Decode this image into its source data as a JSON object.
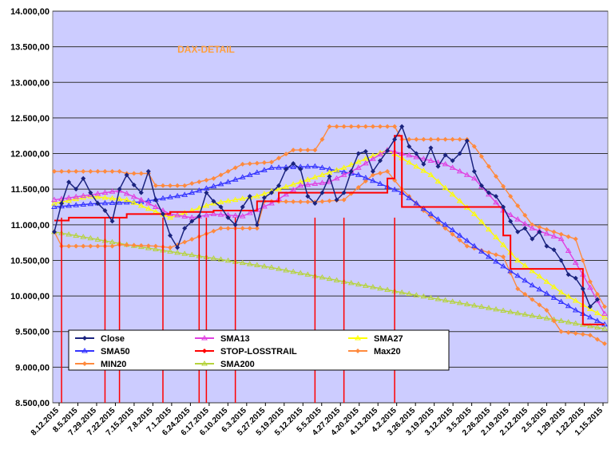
{
  "chart_data": {
    "type": "line",
    "title": "DAX-DETAIL",
    "xlabel": "",
    "ylabel": "",
    "ylim": [
      8500,
      14000
    ],
    "y_ticks": [
      "8.500,00",
      "9.000,00",
      "9.500,00",
      "10.000,00",
      "10.500,00",
      "11.000,00",
      "11.500,00",
      "12.000,00",
      "12.500,00",
      "13.000,00",
      "13.500,00",
      "14.000,00"
    ],
    "y_tick_values": [
      8500,
      9000,
      9500,
      10000,
      10500,
      11000,
      11500,
      12000,
      12500,
      13000,
      13500,
      14000
    ],
    "x_ticks": [
      "8.12.2015",
      "8.5.2015",
      "7.29.2015",
      "7.22.2015",
      "7.15.2015",
      "7.8.2015",
      "7.1.2015",
      "6.24.2015",
      "6.17.2015",
      "6.10.2015",
      "6.3.2015",
      "5.27.2015",
      "5.19.2015",
      "5.12.2015",
      "5.5.2015",
      "4.27.2015",
      "4.20.2015",
      "4.13.2015",
      "4.2.2015",
      "3.26.2015",
      "3.19.2015",
      "3.12.2015",
      "3.5.2015",
      "2.26.2015",
      "2.19.2015",
      "2.12.2015",
      "2.5.2015",
      "1.29.2015",
      "1.22.2015",
      "1.15.2015"
    ],
    "grid": true,
    "legend_position": "bottom-left",
    "x_order": "newest-left (index 0 = 8.12.2015)",
    "series": [
      {
        "name": "Close",
        "color": "#1a237e",
        "marker": "diamond",
        "values": [
          [
            0,
            10900
          ],
          [
            1,
            11300
          ],
          [
            2,
            11600
          ],
          [
            3,
            11500
          ],
          [
            4,
            11650
          ],
          [
            5,
            11450
          ],
          [
            6,
            11300
          ],
          [
            7,
            11200
          ],
          [
            8,
            11050
          ],
          [
            9,
            11500
          ],
          [
            10,
            11700
          ],
          [
            11,
            11560
          ],
          [
            12,
            11450
          ],
          [
            13,
            11750
          ],
          [
            14,
            11350
          ],
          [
            15,
            11150
          ],
          [
            16,
            10850
          ],
          [
            17,
            10680
          ],
          [
            18,
            10950
          ],
          [
            19,
            11050
          ],
          [
            20,
            11120
          ],
          [
            21,
            11450
          ],
          [
            22,
            11330
          ],
          [
            23,
            11250
          ],
          [
            24,
            11100
          ],
          [
            25,
            11000
          ],
          [
            26,
            11250
          ],
          [
            27,
            11400
          ],
          [
            28,
            11000
          ],
          [
            29,
            11380
          ],
          [
            30,
            11450
          ],
          [
            31,
            11550
          ],
          [
            32,
            11780
          ],
          [
            33,
            11860
          ],
          [
            34,
            11780
          ],
          [
            35,
            11400
          ],
          [
            36,
            11300
          ],
          [
            37,
            11450
          ],
          [
            38,
            11680
          ],
          [
            39,
            11350
          ],
          [
            40,
            11450
          ],
          [
            41,
            11750
          ],
          [
            42,
            12000
          ],
          [
            43,
            12030
          ],
          [
            44,
            11750
          ],
          [
            45,
            11900
          ],
          [
            46,
            12040
          ],
          [
            47,
            12200
          ],
          [
            48,
            12380
          ],
          [
            49,
            12100
          ],
          [
            50,
            12000
          ],
          [
            51,
            11850
          ],
          [
            52,
            12080
          ],
          [
            53,
            11820
          ],
          [
            54,
            11980
          ],
          [
            55,
            11900
          ],
          [
            56,
            12000
          ],
          [
            57,
            12180
          ],
          [
            58,
            11750
          ],
          [
            59,
            11550
          ],
          [
            60,
            11450
          ],
          [
            61,
            11400
          ],
          [
            62,
            11250
          ],
          [
            63,
            11050
          ],
          [
            64,
            10900
          ],
          [
            65,
            10950
          ],
          [
            66,
            10800
          ],
          [
            67,
            10900
          ],
          [
            68,
            10700
          ],
          [
            69,
            10650
          ],
          [
            70,
            10500
          ],
          [
            71,
            10300
          ],
          [
            72,
            10250
          ],
          [
            73,
            10100
          ],
          [
            74,
            9850
          ],
          [
            75,
            9950
          ]
        ]
      },
      {
        "name": "SMA13",
        "color": "#e040e0",
        "marker": "triangle",
        "values": [
          [
            0,
            11350
          ],
          [
            5,
            11420
          ],
          [
            9,
            11480
          ],
          [
            12,
            11350
          ],
          [
            16,
            11150
          ],
          [
            19,
            11100
          ],
          [
            22,
            11150
          ],
          [
            26,
            11120
          ],
          [
            30,
            11300
          ],
          [
            34,
            11550
          ],
          [
            38,
            11600
          ],
          [
            42,
            11800
          ],
          [
            46,
            12050
          ],
          [
            50,
            11950
          ],
          [
            54,
            11850
          ],
          [
            58,
            11650
          ],
          [
            62,
            11200
          ],
          [
            66,
            10950
          ],
          [
            70,
            10800
          ],
          [
            73,
            10300
          ],
          [
            76,
            9750
          ]
        ]
      },
      {
        "name": "SMA27",
        "color": "#ffff00",
        "marker": "triangle",
        "values": [
          [
            0,
            11300
          ],
          [
            5,
            11400
          ],
          [
            10,
            11350
          ],
          [
            16,
            11100
          ],
          [
            22,
            11300
          ],
          [
            28,
            11400
          ],
          [
            34,
            11600
          ],
          [
            40,
            11800
          ],
          [
            46,
            12050
          ],
          [
            52,
            11700
          ],
          [
            58,
            11150
          ],
          [
            64,
            10500
          ],
          [
            70,
            10050
          ],
          [
            76,
            9700
          ]
        ]
      },
      {
        "name": "SMA50",
        "color": "#3333ff",
        "marker": "triangle",
        "values": [
          [
            0,
            11250
          ],
          [
            6,
            11300
          ],
          [
            12,
            11320
          ],
          [
            18,
            11420
          ],
          [
            24,
            11600
          ],
          [
            30,
            11800
          ],
          [
            36,
            11820
          ],
          [
            42,
            11700
          ],
          [
            48,
            11450
          ],
          [
            54,
            11000
          ],
          [
            60,
            10550
          ],
          [
            66,
            10150
          ],
          [
            72,
            9800
          ],
          [
            76,
            9600
          ]
        ]
      },
      {
        "name": "STOP-LOSSTRAIL",
        "color": "#ff0000",
        "marker": "none",
        "values": [
          [
            0,
            11060
          ],
          [
            2,
            11100
          ],
          [
            9,
            11100
          ],
          [
            10,
            11150
          ],
          [
            14,
            11150
          ],
          [
            16,
            11180
          ],
          [
            22,
            11200
          ],
          [
            28,
            11330
          ],
          [
            31,
            11450
          ],
          [
            46,
            11650
          ],
          [
            47,
            12250
          ],
          [
            48,
            11250
          ],
          [
            57,
            11250
          ],
          [
            58,
            11250
          ],
          [
            62,
            10850
          ],
          [
            63,
            10380
          ],
          [
            72,
            10380
          ],
          [
            73,
            9600
          ],
          [
            76,
            9600
          ]
        ]
      },
      {
        "name": "Max20",
        "color": "#ff8a3d",
        "marker": "diamond",
        "values": [
          [
            0,
            11750
          ],
          [
            9,
            11750
          ],
          [
            10,
            11720
          ],
          [
            13,
            11720
          ],
          [
            14,
            11550
          ],
          [
            18,
            11550
          ],
          [
            19,
            11580
          ],
          [
            22,
            11650
          ],
          [
            26,
            11850
          ],
          [
            30,
            11880
          ],
          [
            33,
            12050
          ],
          [
            36,
            12050
          ],
          [
            37,
            12200
          ],
          [
            38,
            12380
          ],
          [
            47,
            12380
          ],
          [
            48,
            12200
          ],
          [
            57,
            12200
          ],
          [
            58,
            12100
          ],
          [
            63,
            11400
          ],
          [
            66,
            11000
          ],
          [
            72,
            10800
          ],
          [
            74,
            10200
          ],
          [
            76,
            9850
          ]
        ]
      },
      {
        "name": "MIN20",
        "color": "#ff8a3d",
        "marker": "diamond",
        "values": [
          [
            0,
            10900
          ],
          [
            1,
            10700
          ],
          [
            8,
            10700
          ],
          [
            9,
            10720
          ],
          [
            14,
            10700
          ],
          [
            16,
            10680
          ],
          [
            23,
            10950
          ],
          [
            28,
            10950
          ],
          [
            29,
            11330
          ],
          [
            36,
            11320
          ],
          [
            40,
            11350
          ],
          [
            44,
            11700
          ],
          [
            46,
            11750
          ],
          [
            48,
            11500
          ],
          [
            51,
            11200
          ],
          [
            57,
            10700
          ],
          [
            62,
            10550
          ],
          [
            64,
            10100
          ],
          [
            68,
            9800
          ],
          [
            70,
            9500
          ],
          [
            74,
            9450
          ],
          [
            76,
            9330
          ]
        ]
      },
      {
        "name": "SMA200",
        "color": "#b6d33c",
        "marker": "triangle",
        "values": [
          [
            0,
            10900
          ],
          [
            10,
            10720
          ],
          [
            20,
            10560
          ],
          [
            30,
            10400
          ],
          [
            40,
            10200
          ],
          [
            50,
            10010
          ],
          [
            60,
            9830
          ],
          [
            70,
            9650
          ],
          [
            76,
            9540
          ]
        ]
      }
    ]
  }
}
